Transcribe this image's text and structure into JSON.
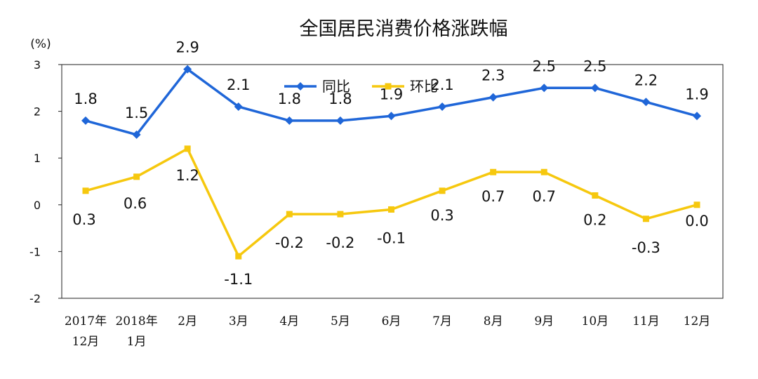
{
  "chart_data": {
    "type": "line",
    "title": "全国居民消费价格涨跌幅",
    "ylabel": "(%)",
    "ylim": [
      -2,
      3
    ],
    "yticks": [
      3,
      2,
      1,
      0,
      -1,
      -2
    ],
    "categories": [
      [
        "2017年",
        "12月"
      ],
      [
        "2018年",
        "1月"
      ],
      [
        "2月"
      ],
      [
        "3月"
      ],
      [
        "4月"
      ],
      [
        "5月"
      ],
      [
        "6月"
      ],
      [
        "7月"
      ],
      [
        "8月"
      ],
      [
        "9月"
      ],
      [
        "10月"
      ],
      [
        "11月"
      ],
      [
        "12月"
      ]
    ],
    "series": [
      {
        "name": "同比",
        "color": "#1f66d8",
        "marker": "diamond",
        "values": [
          1.8,
          1.5,
          2.9,
          2.1,
          1.8,
          1.8,
          1.9,
          2.1,
          2.3,
          2.5,
          2.5,
          2.2,
          1.9
        ],
        "labels": [
          "1.8",
          "1.5",
          "2.9",
          "2.1",
          "1.8",
          "1.8",
          "1.9",
          "2.1",
          "2.3",
          "2.5",
          "2.5",
          "2.2",
          "1.9"
        ]
      },
      {
        "name": "环比",
        "color": "#f6c80e",
        "marker": "square",
        "values": [
          0.3,
          0.6,
          1.2,
          -1.1,
          -0.2,
          -0.2,
          -0.1,
          0.3,
          0.7,
          0.7,
          0.2,
          -0.3,
          0.0
        ],
        "labels": [
          "0.3",
          "0.6",
          "1.2",
          "-1.1",
          "-0.2",
          "-0.2",
          "-0.1",
          "0.3",
          "0.7",
          "0.7",
          "0.2",
          "-0.3",
          "0.0"
        ]
      }
    ],
    "legend": "top-center",
    "grid": false
  }
}
